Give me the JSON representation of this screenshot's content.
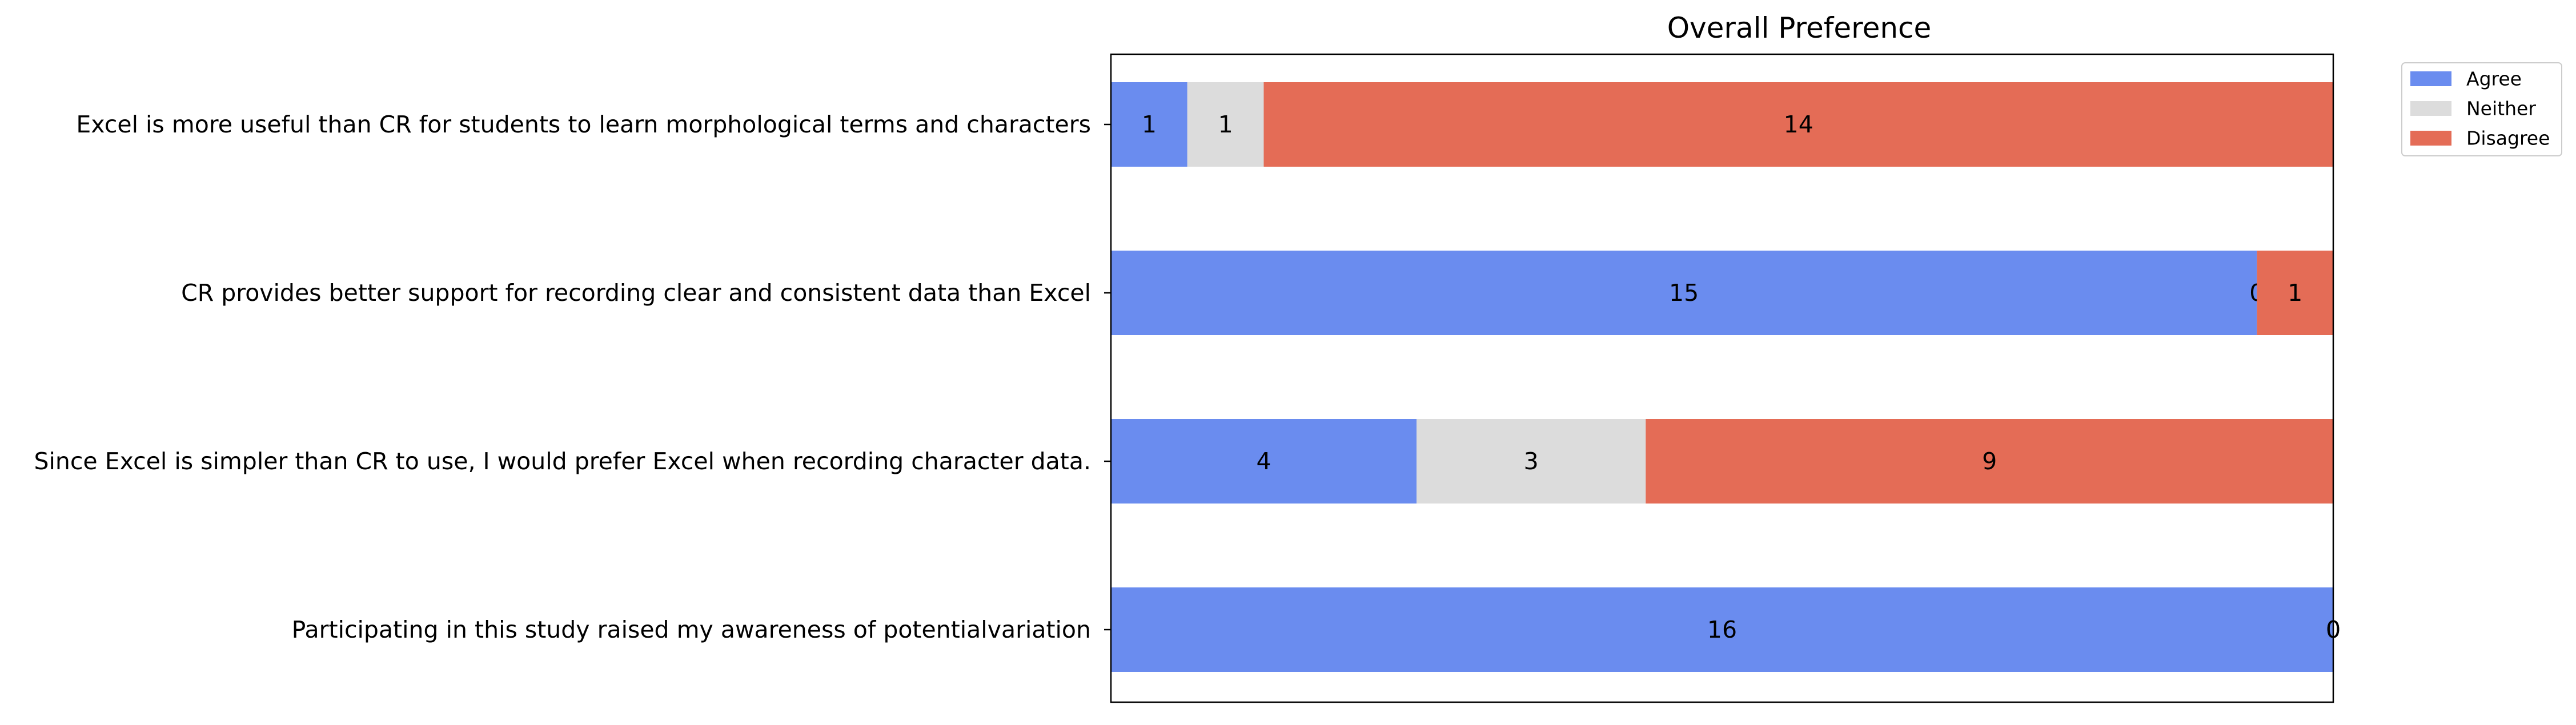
{
  "chart_data": {
    "type": "bar",
    "orientation": "horizontal",
    "stacked": true,
    "normalized": true,
    "title": "Overall Preference",
    "xlabel": "",
    "ylabel": "",
    "categories": [
      "Excel is more useful than CR  for students to learn morphological terms and characters",
      "CR provides better support for recording clear and consistent data than Excel",
      "Since Excel is simpler than CR to use, I would prefer Excel when recording character data.",
      "Participating in this study raised my awareness of potentialvariation"
    ],
    "series": [
      {
        "name": "Agree",
        "color": "#6a8cef",
        "values": [
          1,
          15,
          4,
          16
        ]
      },
      {
        "name": "Neither",
        "color": "#dcdcdc",
        "values": [
          1,
          0,
          3,
          0
        ]
      },
      {
        "name": "Disagree",
        "color": "#e46c56",
        "values": [
          14,
          1,
          9,
          0
        ]
      }
    ],
    "legend": {
      "position": "outside top-right"
    },
    "grid": false,
    "x_ticks": false
  }
}
